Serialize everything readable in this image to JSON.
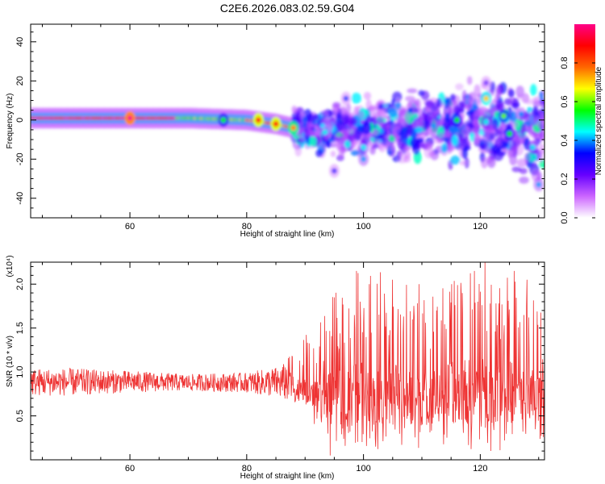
{
  "title": "C2E6.2026.083.02.59.G04",
  "colors": {
    "snr_line": "#ee3333",
    "frame": "#000000"
  },
  "chart_data": [
    {
      "type": "heatmap",
      "xlabel": "Height of straight line (km)",
      "ylabel": "Frequency (Hz)",
      "xlim": [
        43,
        131
      ],
      "ylim": [
        -50,
        49
      ],
      "xticks": [
        60,
        80,
        100,
        120
      ],
      "yticks": [
        -40,
        -20,
        0,
        20,
        40
      ],
      "ytick_labels": [
        "-40",
        "-20",
        "0",
        "20",
        "40"
      ],
      "colorbar": {
        "label": "Normalized spectral amplitude",
        "range": [
          0,
          1
        ],
        "ticks": [
          0.0,
          0.2,
          0.4,
          0.6,
          0.8
        ],
        "tick_labels": [
          "0.0",
          "0.2",
          "0.4",
          "0.6",
          "0.8"
        ],
        "colormap": [
          "#ffffff",
          "#cc66ff",
          "#6600ff",
          "#0000ff",
          "#00ffff",
          "#00ff00",
          "#ffff00",
          "#ff6600",
          "#ff0000",
          "#ff0088"
        ]
      },
      "ridge": [
        [
          43,
          1
        ],
        [
          60,
          1
        ],
        [
          70,
          1
        ],
        [
          80,
          0
        ],
        [
          85,
          -2
        ],
        [
          88,
          -4
        ],
        [
          90,
          -6
        ],
        [
          92,
          -7
        ],
        [
          95,
          -5
        ],
        [
          100,
          -3
        ],
        [
          105,
          -4
        ],
        [
          110,
          -3
        ],
        [
          115,
          -3
        ],
        [
          120,
          -2
        ],
        [
          125,
          -4
        ],
        [
          128,
          -5
        ],
        [
          131,
          -6
        ]
      ],
      "hotspots": [
        [
          60,
          1,
          1.0
        ],
        [
          76,
          0,
          0.55
        ],
        [
          82,
          0,
          0.9
        ],
        [
          85,
          -2,
          0.9
        ],
        [
          88,
          -4,
          0.75
        ],
        [
          97,
          11,
          0.35
        ],
        [
          100,
          -14,
          0.45
        ],
        [
          100,
          -20,
          0.4
        ],
        [
          103,
          7,
          0.3
        ],
        [
          108,
          5,
          0.35
        ],
        [
          112,
          -3,
          0.4
        ],
        [
          116,
          0,
          0.55
        ],
        [
          121,
          11,
          0.7
        ],
        [
          121,
          -1,
          0.45
        ],
        [
          124,
          2,
          0.6
        ],
        [
          125,
          -7,
          0.55
        ],
        [
          127,
          3,
          0.4
        ],
        [
          129,
          -14,
          0.45
        ],
        [
          130,
          -33,
          0.4
        ],
        [
          95,
          -26,
          0.3
        ],
        [
          121,
          19,
          0.25
        ]
      ]
    },
    {
      "type": "line",
      "xlabel": "Height of straight line (km)",
      "ylabel": "SNR (10 * v/v)",
      "y_multiplier": "(x10⁴)",
      "xlim": [
        43,
        131
      ],
      "ylim": [
        0,
        2.25
      ],
      "xticks": [
        60,
        80,
        100,
        120
      ],
      "yticks": [
        0.5,
        1.0,
        1.5,
        2.0
      ],
      "ytick_labels": [
        "0.5",
        "1.0",
        "1.5",
        "2.0"
      ],
      "envelope": [
        [
          43,
          0.72,
          1.05
        ],
        [
          50,
          0.72,
          1.05
        ],
        [
          60,
          0.76,
          1.02
        ],
        [
          70,
          0.78,
          0.98
        ],
        [
          80,
          0.76,
          1.0
        ],
        [
          86,
          0.68,
          1.08
        ],
        [
          89,
          0.55,
          1.35
        ],
        [
          92,
          0.35,
          1.55
        ],
        [
          95,
          0.1,
          1.9
        ],
        [
          100,
          0.1,
          2.2
        ],
        [
          110,
          0.1,
          2.0
        ],
        [
          120,
          0.1,
          2.25
        ],
        [
          126,
          0.1,
          2.15
        ],
        [
          131,
          0.25,
          1.7
        ]
      ],
      "peaks": [
        [
          94.3,
          0.05
        ],
        [
          95.0,
          1.85
        ],
        [
          98.8,
          2.15
        ],
        [
          101.0,
          2.0
        ],
        [
          109.5,
          2.0
        ],
        [
          119.0,
          2.15
        ],
        [
          120.8,
          2.25
        ],
        [
          125.8,
          2.15
        ],
        [
          128.0,
          2.05
        ]
      ]
    }
  ]
}
